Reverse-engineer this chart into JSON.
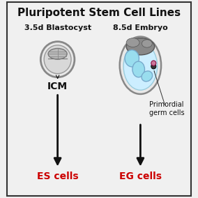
{
  "title": "Pluripotent Stem Cell Lines",
  "title_fontsize": 11,
  "title_fontweight": "bold",
  "bg_color": "#f0f0f0",
  "border_color": "#333333",
  "left_label": "3.5d Blastocyst",
  "right_label": "8.5d Embryo",
  "icm_label": "ICM",
  "primordial_label": "Primordial\ngerm cells",
  "es_label": "ES cells",
  "eg_label": "EG cells",
  "label_fontsize": 8,
  "icm_fontsize": 10,
  "result_fontsize": 10,
  "red_color": "#cc0000",
  "black_color": "#111111",
  "embryo_fluid_color": "#cceeff",
  "embryo_body_color": "#99ddee",
  "embryo_outer_gray": "#aaaaaa",
  "embryo_dark_cap": "#888888",
  "blasto_outer": "#cccccc",
  "blasto_inner": "#e0e0e0",
  "blasto_icm": "#aaaaaa",
  "germ_cell_color": "#cc7799",
  "germ_cell_dark": "#333333"
}
